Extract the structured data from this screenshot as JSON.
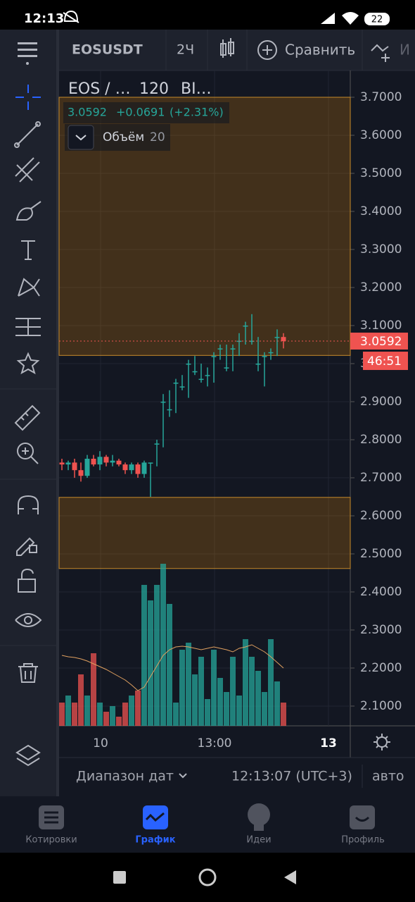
{
  "status_bar": {
    "time": "12:13",
    "battery": "22"
  },
  "toolbar": {
    "symbol": "EOSUSDT",
    "interval": "2Ч",
    "compare": "Сравнить",
    "more": "И"
  },
  "legend": {
    "title": "EOS / …",
    "interval": "120",
    "exchange": "BI…",
    "price": "3.0592",
    "change": "+0.0691",
    "change_pct": "(+2.31%)",
    "volume_label": "Объём",
    "volume_length": "20"
  },
  "chart_data": {
    "type": "candlestick",
    "up_color": "#26a69a",
    "down_color": "#ef5350",
    "ma_color": "#e0a060",
    "open": [
      2.74,
      2.735,
      2.74,
      2.72,
      2.705,
      2.75,
      2.735,
      2.755,
      2.74,
      2.745,
      2.735,
      2.72,
      2.735,
      2.71,
      2.74,
      2.79,
      2.9,
      2.88,
      2.95,
      2.94,
      3.0,
      2.98,
      2.96,
      2.97,
      3.02,
      3.04,
      2.99,
      3.04,
      3.06,
      3.1,
      3.06,
      3.0,
      3.02,
      3.03,
      3.07,
      3.07
    ],
    "high": [
      2.75,
      2.745,
      2.75,
      2.74,
      2.76,
      2.76,
      2.77,
      2.76,
      2.76,
      2.75,
      2.74,
      2.74,
      2.74,
      2.745,
      2.74,
      2.8,
      2.92,
      2.93,
      2.96,
      2.97,
      3.01,
      3.02,
      3.0,
      2.99,
      3.03,
      3.05,
      3.05,
      3.05,
      3.08,
      3.11,
      3.13,
      3.07,
      3.03,
      3.04,
      3.09,
      3.08
    ],
    "low": [
      2.72,
      2.72,
      2.7,
      2.69,
      2.7,
      2.73,
      2.72,
      2.73,
      2.73,
      2.73,
      2.71,
      2.71,
      2.7,
      2.7,
      2.65,
      2.73,
      2.78,
      2.86,
      2.87,
      2.93,
      2.91,
      2.97,
      2.95,
      2.94,
      2.95,
      3.01,
      2.98,
      2.98,
      3.02,
      3.05,
      3.05,
      2.98,
      2.94,
      3.01,
      3.02,
      3.04
    ],
    "close": [
      2.735,
      2.74,
      2.72,
      2.705,
      2.75,
      2.735,
      2.755,
      2.74,
      2.745,
      2.735,
      2.72,
      2.735,
      2.71,
      2.74,
      2.74,
      2.79,
      2.9,
      2.88,
      2.95,
      2.94,
      3.0,
      2.98,
      2.96,
      2.97,
      3.02,
      3.04,
      2.99,
      3.04,
      3.06,
      3.1,
      3.06,
      3.0,
      3.02,
      3.03,
      3.07,
      3.0592
    ],
    "volume": [
      33,
      43,
      33,
      73,
      43,
      103,
      33,
      20,
      28,
      13,
      33,
      43,
      50,
      200,
      178,
      200,
      230,
      173,
      33,
      108,
      118,
      73,
      98,
      38,
      108,
      68,
      48,
      98,
      43,
      123,
      98,
      78,
      48,
      123,
      63,
      33
    ],
    "volume_ma": [
      100,
      98,
      97,
      95,
      92,
      88,
      84,
      80,
      75,
      70,
      65,
      58,
      50,
      55,
      70,
      85,
      100,
      108,
      112,
      113,
      112,
      110,
      108,
      110,
      112,
      110,
      108,
      105,
      110,
      112,
      115,
      110,
      105,
      98,
      90,
      82
    ],
    "zones": [
      [
        3.0216,
        3.7
      ],
      [
        2.4615,
        2.6485
      ]
    ],
    "ylim": [
      2.0481,
      3.7704
    ],
    "yticks": [
      {
        "value": 3.7,
        "label": "3.7000"
      },
      {
        "value": 3.6,
        "label": "3.6000"
      },
      {
        "value": 3.5,
        "label": "3.5000"
      },
      {
        "value": 3.4,
        "label": "3.4000"
      },
      {
        "value": 3.3,
        "label": "3.3000"
      },
      {
        "value": 3.2,
        "label": "3.2000"
      },
      {
        "value": 3.1,
        "label": "3.1000"
      },
      {
        "value": 3.0,
        "label": "3.0000"
      },
      {
        "value": 2.9,
        "label": "2.9000"
      },
      {
        "value": 2.8,
        "label": "2.8000"
      },
      {
        "value": 2.7,
        "label": "2.7000"
      },
      {
        "value": 2.6,
        "label": "2.6000"
      },
      {
        "value": 2.5,
        "label": "2.5000"
      },
      {
        "value": 2.4,
        "label": "2.4000"
      },
      {
        "value": 2.3,
        "label": "2.3000"
      },
      {
        "value": 2.2,
        "label": "2.2000"
      },
      {
        "value": 2.1,
        "label": "2.1000"
      }
    ],
    "grid": true
  },
  "time_labels": [
    "10",
    "13:00",
    "13"
  ],
  "countdown": "46:51",
  "footer": {
    "date_range": "Диапазон дат",
    "time": "12:13:07 (UTC+3)",
    "auto": "авто"
  },
  "nav": [
    "Котировки",
    "График",
    "Идеи",
    "Профиль"
  ]
}
